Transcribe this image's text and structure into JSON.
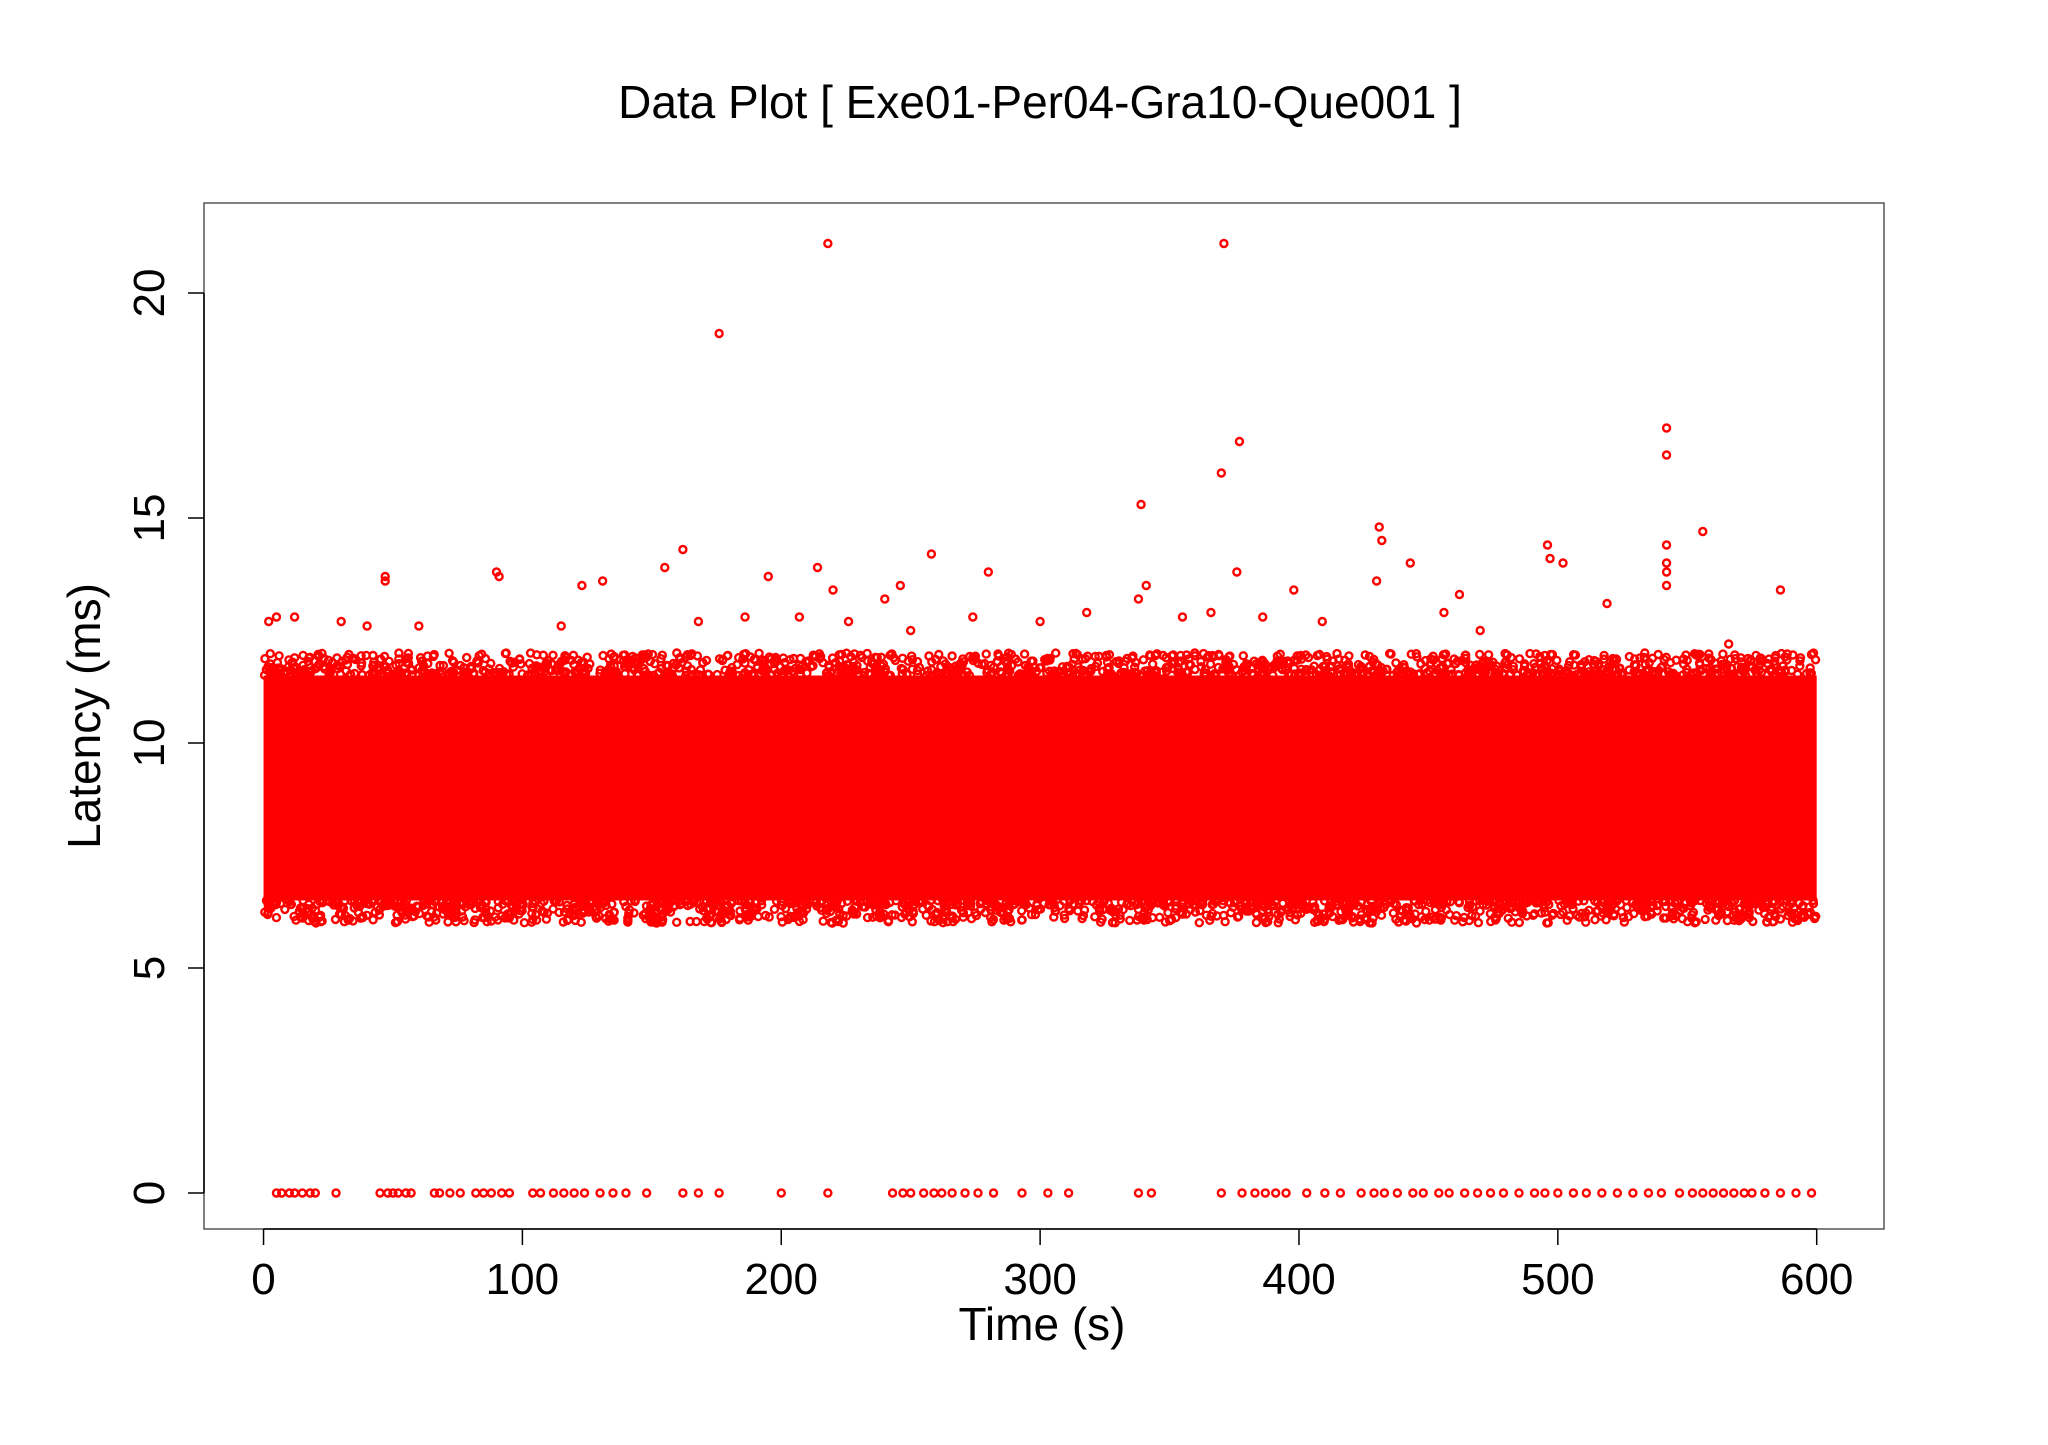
{
  "chart_data": {
    "type": "scatter",
    "title": "Data Plot [ Exe01-Per04-Gra10-Que001 ]",
    "xlabel": "Time (s)",
    "ylabel": "Latency (ms)",
    "xlim": [
      -23,
      626
    ],
    "ylim": [
      -0.8,
      22
    ],
    "x_ticks": [
      0,
      100,
      200,
      300,
      400,
      500,
      600
    ],
    "y_ticks": [
      0,
      5,
      10,
      15,
      20
    ],
    "x_tick_labels": [
      "0",
      "100",
      "200",
      "300",
      "400",
      "500",
      "600"
    ],
    "y_tick_labels": [
      "0",
      "5",
      "10",
      "15",
      "20"
    ],
    "grid": false,
    "legend": "none",
    "marker": "open-circle",
    "color": "#ff0000",
    "series": [
      {
        "dense_band": {
          "x_range": [
            0,
            600
          ],
          "core_y_range": [
            6.5,
            11.5
          ],
          "outer_y_range": [
            6.0,
            12.0
          ],
          "median_y": 8.9
        },
        "outliers": [
          [
            218,
            21.1
          ],
          [
            371,
            21.1
          ],
          [
            176,
            19.1
          ],
          [
            542,
            17.0
          ],
          [
            377,
            16.7
          ],
          [
            542,
            16.4
          ],
          [
            370,
            16.0
          ],
          [
            339,
            15.3
          ],
          [
            431,
            14.8
          ],
          [
            432,
            14.5
          ],
          [
            556,
            14.7
          ],
          [
            542,
            14.4
          ],
          [
            496,
            14.4
          ],
          [
            502,
            14.0
          ],
          [
            497,
            14.1
          ],
          [
            443,
            14.0
          ],
          [
            542,
            14.0
          ],
          [
            542,
            13.8
          ],
          [
            542,
            13.5
          ],
          [
            162,
            14.3
          ],
          [
            258,
            14.2
          ],
          [
            155,
            13.9
          ],
          [
            214,
            13.9
          ],
          [
            47,
            13.7
          ],
          [
            47,
            13.6
          ],
          [
            90,
            13.8
          ],
          [
            91,
            13.7
          ],
          [
            131,
            13.6
          ],
          [
            195,
            13.7
          ],
          [
            246,
            13.5
          ],
          [
            280,
            13.8
          ],
          [
            341,
            13.5
          ],
          [
            376,
            13.8
          ],
          [
            398,
            13.4
          ],
          [
            430,
            13.6
          ],
          [
            462,
            13.3
          ],
          [
            586,
            13.4
          ],
          [
            123,
            13.5
          ],
          [
            240,
            13.2
          ],
          [
            338,
            13.2
          ],
          [
            519,
            13.1
          ],
          [
            220,
            13.4
          ],
          [
            2,
            12.7
          ],
          [
            5,
            12.8
          ],
          [
            12,
            12.8
          ],
          [
            30,
            12.7
          ],
          [
            40,
            12.6
          ],
          [
            60,
            12.6
          ],
          [
            115,
            12.6
          ],
          [
            168,
            12.7
          ],
          [
            186,
            12.8
          ],
          [
            207,
            12.8
          ],
          [
            226,
            12.7
          ],
          [
            250,
            12.5
          ],
          [
            274,
            12.8
          ],
          [
            300,
            12.7
          ],
          [
            318,
            12.9
          ],
          [
            355,
            12.8
          ],
          [
            366,
            12.9
          ],
          [
            386,
            12.8
          ],
          [
            409,
            12.7
          ],
          [
            456,
            12.9
          ],
          [
            470,
            12.5
          ],
          [
            566,
            12.2
          ]
        ],
        "zero_points_x": [
          5,
          7,
          10,
          12,
          15,
          18,
          20,
          28,
          45,
          48,
          50,
          52,
          55,
          57,
          66,
          68,
          72,
          76,
          82,
          85,
          88,
          92,
          95,
          104,
          107,
          112,
          116,
          120,
          124,
          130,
          135,
          140,
          148,
          162,
          168,
          176,
          200,
          218,
          243,
          247,
          250,
          255,
          259,
          262,
          266,
          271,
          276,
          282,
          293,
          303,
          311,
          338,
          343,
          370,
          378,
          383,
          387,
          391,
          395,
          403,
          410,
          416,
          424,
          429,
          433,
          438,
          444,
          448,
          454,
          458,
          464,
          469,
          474,
          479,
          485,
          491,
          495,
          500,
          506,
          511,
          517,
          523,
          529,
          535,
          540,
          547,
          552,
          556,
          560,
          564,
          568,
          572,
          575,
          580,
          586,
          592,
          598
        ]
      }
    ]
  }
}
